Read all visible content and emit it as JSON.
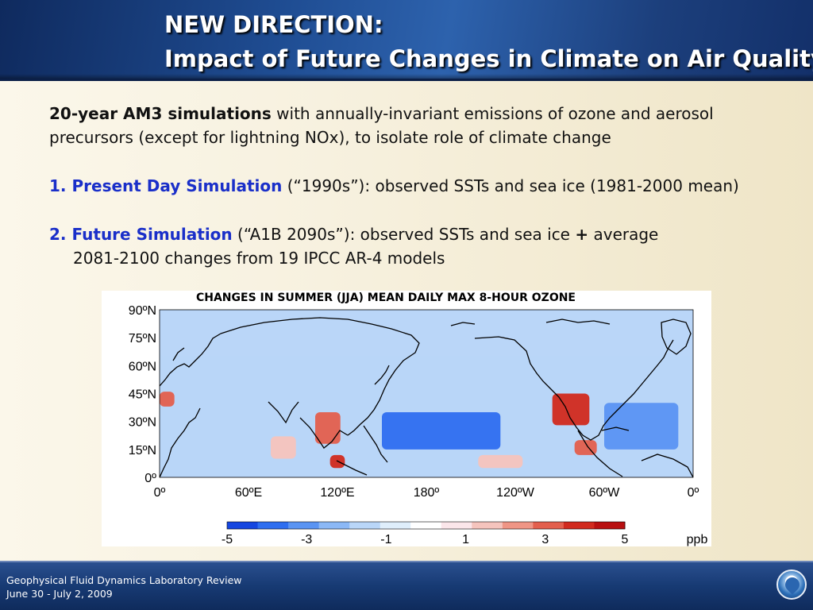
{
  "header": {
    "title_line1": "NEW DIRECTION:",
    "title_line2": "Impact of Future Changes in Climate on Air Quality"
  },
  "body": {
    "p1_bold": "20-year AM3 simulations",
    "p1_rest": " with annually-invariant emissions of ozone and aerosol",
    "p1_line2": "precursors (except for lightning NOx), to isolate role of climate change",
    "p2_label": "1. Present Day Simulation",
    "p2_rest": " (“1990s”): observed SSTs and sea ice (1981-2000 mean)",
    "p3_label": "2. Future Simulation",
    "p3_rest": " (“A1B 2090s”): observed SSTs and sea ice ",
    "p3_plus": "+",
    "p3_rest2": " average",
    "p3_line2": "2081-2100 changes from 19 IPCC AR-4 models"
  },
  "chart_data": {
    "type": "heatmap",
    "title": "CHANGES IN SUMMER (JJA) MEAN DAILY MAX 8-HOUR OZONE",
    "x_tick_labels": [
      "0º",
      "60ºE",
      "120ºE",
      "180º",
      "120ºW",
      "60ºW",
      "0º"
    ],
    "y_tick_labels": [
      "90ºN",
      "75ºN",
      "60ºN",
      "45ºN",
      "30ºN",
      "15ºN",
      "0º"
    ],
    "xlim": [
      0,
      360
    ],
    "ylim": [
      0,
      90
    ],
    "colorbar": {
      "unit": "ppb",
      "range": [
        -5,
        5
      ],
      "tick_labels": [
        "-5",
        "-3",
        "-1",
        "1",
        "3",
        "5"
      ],
      "colors": [
        "#1546e0",
        "#2e6ef0",
        "#5a94f3",
        "#8bb8f6",
        "#b9d6f8",
        "#dfeefb",
        "#ffffff",
        "#fbe6ea",
        "#f5c4bd",
        "#ef9585",
        "#e35f4d",
        "#d12a1e",
        "#b80f10"
      ]
    },
    "regions": [
      {
        "name": "eastern US",
        "lon": [
          265,
          290
        ],
        "lat": [
          28,
          45
        ],
        "value": 4
      },
      {
        "name": "eastern China",
        "lon": [
          105,
          122
        ],
        "lat": [
          18,
          35
        ],
        "value": 3
      },
      {
        "name": "South China Sea",
        "lon": [
          115,
          125
        ],
        "lat": [
          5,
          12
        ],
        "value": 4
      },
      {
        "name": "India",
        "lon": [
          75,
          92
        ],
        "lat": [
          10,
          22
        ],
        "value": 2
      },
      {
        "name": "western Europe",
        "lon": [
          0,
          10
        ],
        "lat": [
          38,
          46
        ],
        "value": 3
      },
      {
        "name": "Caribbean",
        "lon": [
          280,
          295
        ],
        "lat": [
          12,
          20
        ],
        "value": 3
      },
      {
        "name": "eastern Pacific",
        "lon": [
          215,
          245
        ],
        "lat": [
          5,
          12
        ],
        "value": 2
      },
      {
        "name": "central Pacific",
        "lon": [
          150,
          230
        ],
        "lat": [
          15,
          35
        ],
        "value": -4
      },
      {
        "name": "Arctic",
        "lon": [
          0,
          360
        ],
        "lat": [
          65,
          90
        ],
        "value": -2
      },
      {
        "name": "Atlantic",
        "lon": [
          300,
          350
        ],
        "lat": [
          15,
          40
        ],
        "value": -3
      }
    ],
    "background_value": -2
  },
  "footer": {
    "line1": "Geophysical Fluid Dynamics Laboratory Review",
    "line2": "June 30 - July 2, 2009"
  }
}
